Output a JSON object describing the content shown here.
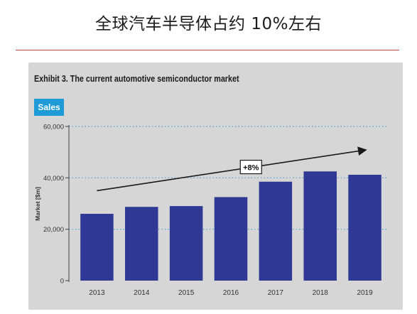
{
  "page": {
    "title": "全球汽车半导体占约 10%左右"
  },
  "colors": {
    "bar": "#2f3894",
    "panel": "#d6d6d6",
    "badge": "#1e9ad6",
    "gridline": "#4aa3d8",
    "divider": "#b34a3f"
  },
  "chart_data": {
    "type": "bar",
    "title": "Exhibit 3. The current automotive semiconductor market",
    "badge": "Sales",
    "ylabel": "Market [$m]",
    "xlabel": "",
    "categories": [
      "2013",
      "2014",
      "2015",
      "2016",
      "2017",
      "2018",
      "2019"
    ],
    "values": [
      26000,
      28700,
      29000,
      32500,
      38500,
      42500,
      41200
    ],
    "ylim": [
      0,
      60000
    ],
    "yticks": [
      0,
      20000,
      40000,
      60000
    ],
    "ytick_labels": [
      "0",
      "20,000",
      "40,000",
      "60,000"
    ],
    "grid": "horizontal dotted at 20,000 / 40,000 / 60,000",
    "annotation": {
      "label": "+8%",
      "type": "trend-arrow",
      "from": {
        "x": "2013",
        "y": 35000
      },
      "to": {
        "x": "2019",
        "y": 50800
      }
    }
  }
}
